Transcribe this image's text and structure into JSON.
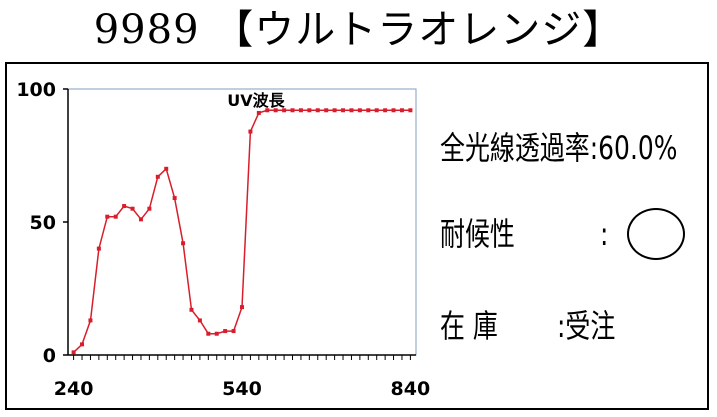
{
  "title": "9989 【ウルトラオレンジ】",
  "chart_data": {
    "type": "line",
    "title": "UV波長",
    "xlabel": "",
    "ylabel": "",
    "xlim": [
      230,
      850
    ],
    "ylim": [
      0,
      100
    ],
    "x_ticks": [
      240,
      540,
      840
    ],
    "y_ticks": [
      0,
      50,
      100
    ],
    "grid": false,
    "color": "#d81e2c",
    "series": [
      {
        "x": [
          240,
          255,
          270,
          285,
          300,
          315,
          330,
          345,
          360,
          375,
          390,
          405,
          420,
          435,
          450,
          465,
          480,
          495,
          510,
          525,
          540,
          555,
          570,
          585,
          600,
          615,
          630,
          645,
          660,
          675,
          690,
          705,
          720,
          735,
          750,
          765,
          780,
          795,
          810,
          825,
          840
        ],
        "y": [
          1,
          4,
          13,
          40,
          52,
          52,
          56,
          55,
          51,
          55,
          67,
          70,
          59,
          42,
          17,
          13,
          8,
          8,
          9,
          9,
          18,
          84,
          91,
          92,
          92,
          92,
          92,
          92,
          92,
          92,
          92,
          92,
          92,
          92,
          92,
          92,
          92,
          92,
          92,
          92,
          92
        ]
      }
    ]
  },
  "info": {
    "transmittance_label": "全光線透過率",
    "transmittance_value": ":60.0%",
    "weather_label": "耐候性",
    "weather_sep": ":",
    "weather_rating_symbol": "circle",
    "stock_label": "在 庫",
    "stock_value": ":受注"
  }
}
